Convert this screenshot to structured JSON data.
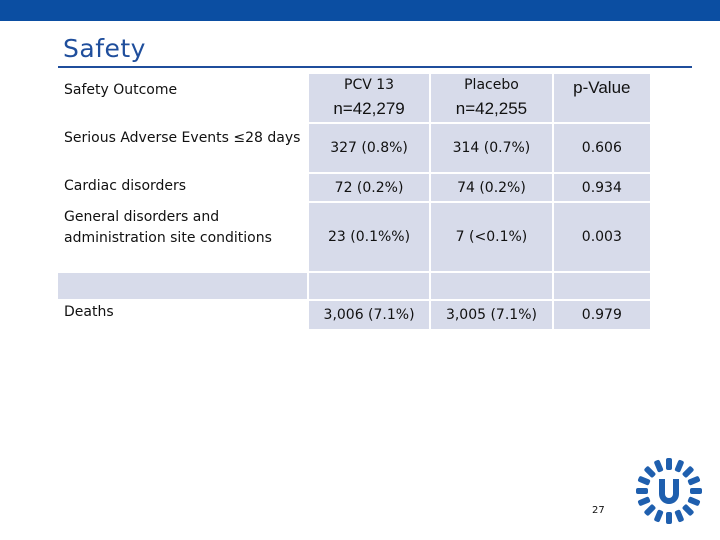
{
  "slide": {
    "title": "Safety",
    "page_number": "27",
    "colors": {
      "accent": "#1f4e9c",
      "cell_fill": "#d7dbea",
      "top_bar": "#0b4ea2"
    }
  },
  "table": {
    "header": {
      "outcome": "Safety Outcome",
      "pcv_label": "PCV 13",
      "pcv_n": "n=42,279",
      "placebo_label": "Placebo",
      "placebo_n": "n=42,255",
      "pvalue": "p-Value"
    },
    "rows": [
      {
        "label": "Serious Adverse Events ≤28 days",
        "pcv": "327 (0.8%)",
        "placebo": "314 (0.7%)",
        "p": "0.606"
      },
      {
        "label": "Cardiac disorders",
        "pcv": "72 (0.2%)",
        "placebo": "74 (0.2%)",
        "p": "0.934"
      },
      {
        "label": "General disorders and administration site conditions",
        "pcv": "23 (0.1%%)",
        "placebo": "7 (<0.1%)",
        "p": "0.003"
      },
      {
        "label": "",
        "pcv": "",
        "placebo": "",
        "p": ""
      },
      {
        "label": "Deaths",
        "pcv": "3,006 (7.1%)",
        "placebo": "3,005 (7.1%)",
        "p": "0.979"
      }
    ]
  }
}
